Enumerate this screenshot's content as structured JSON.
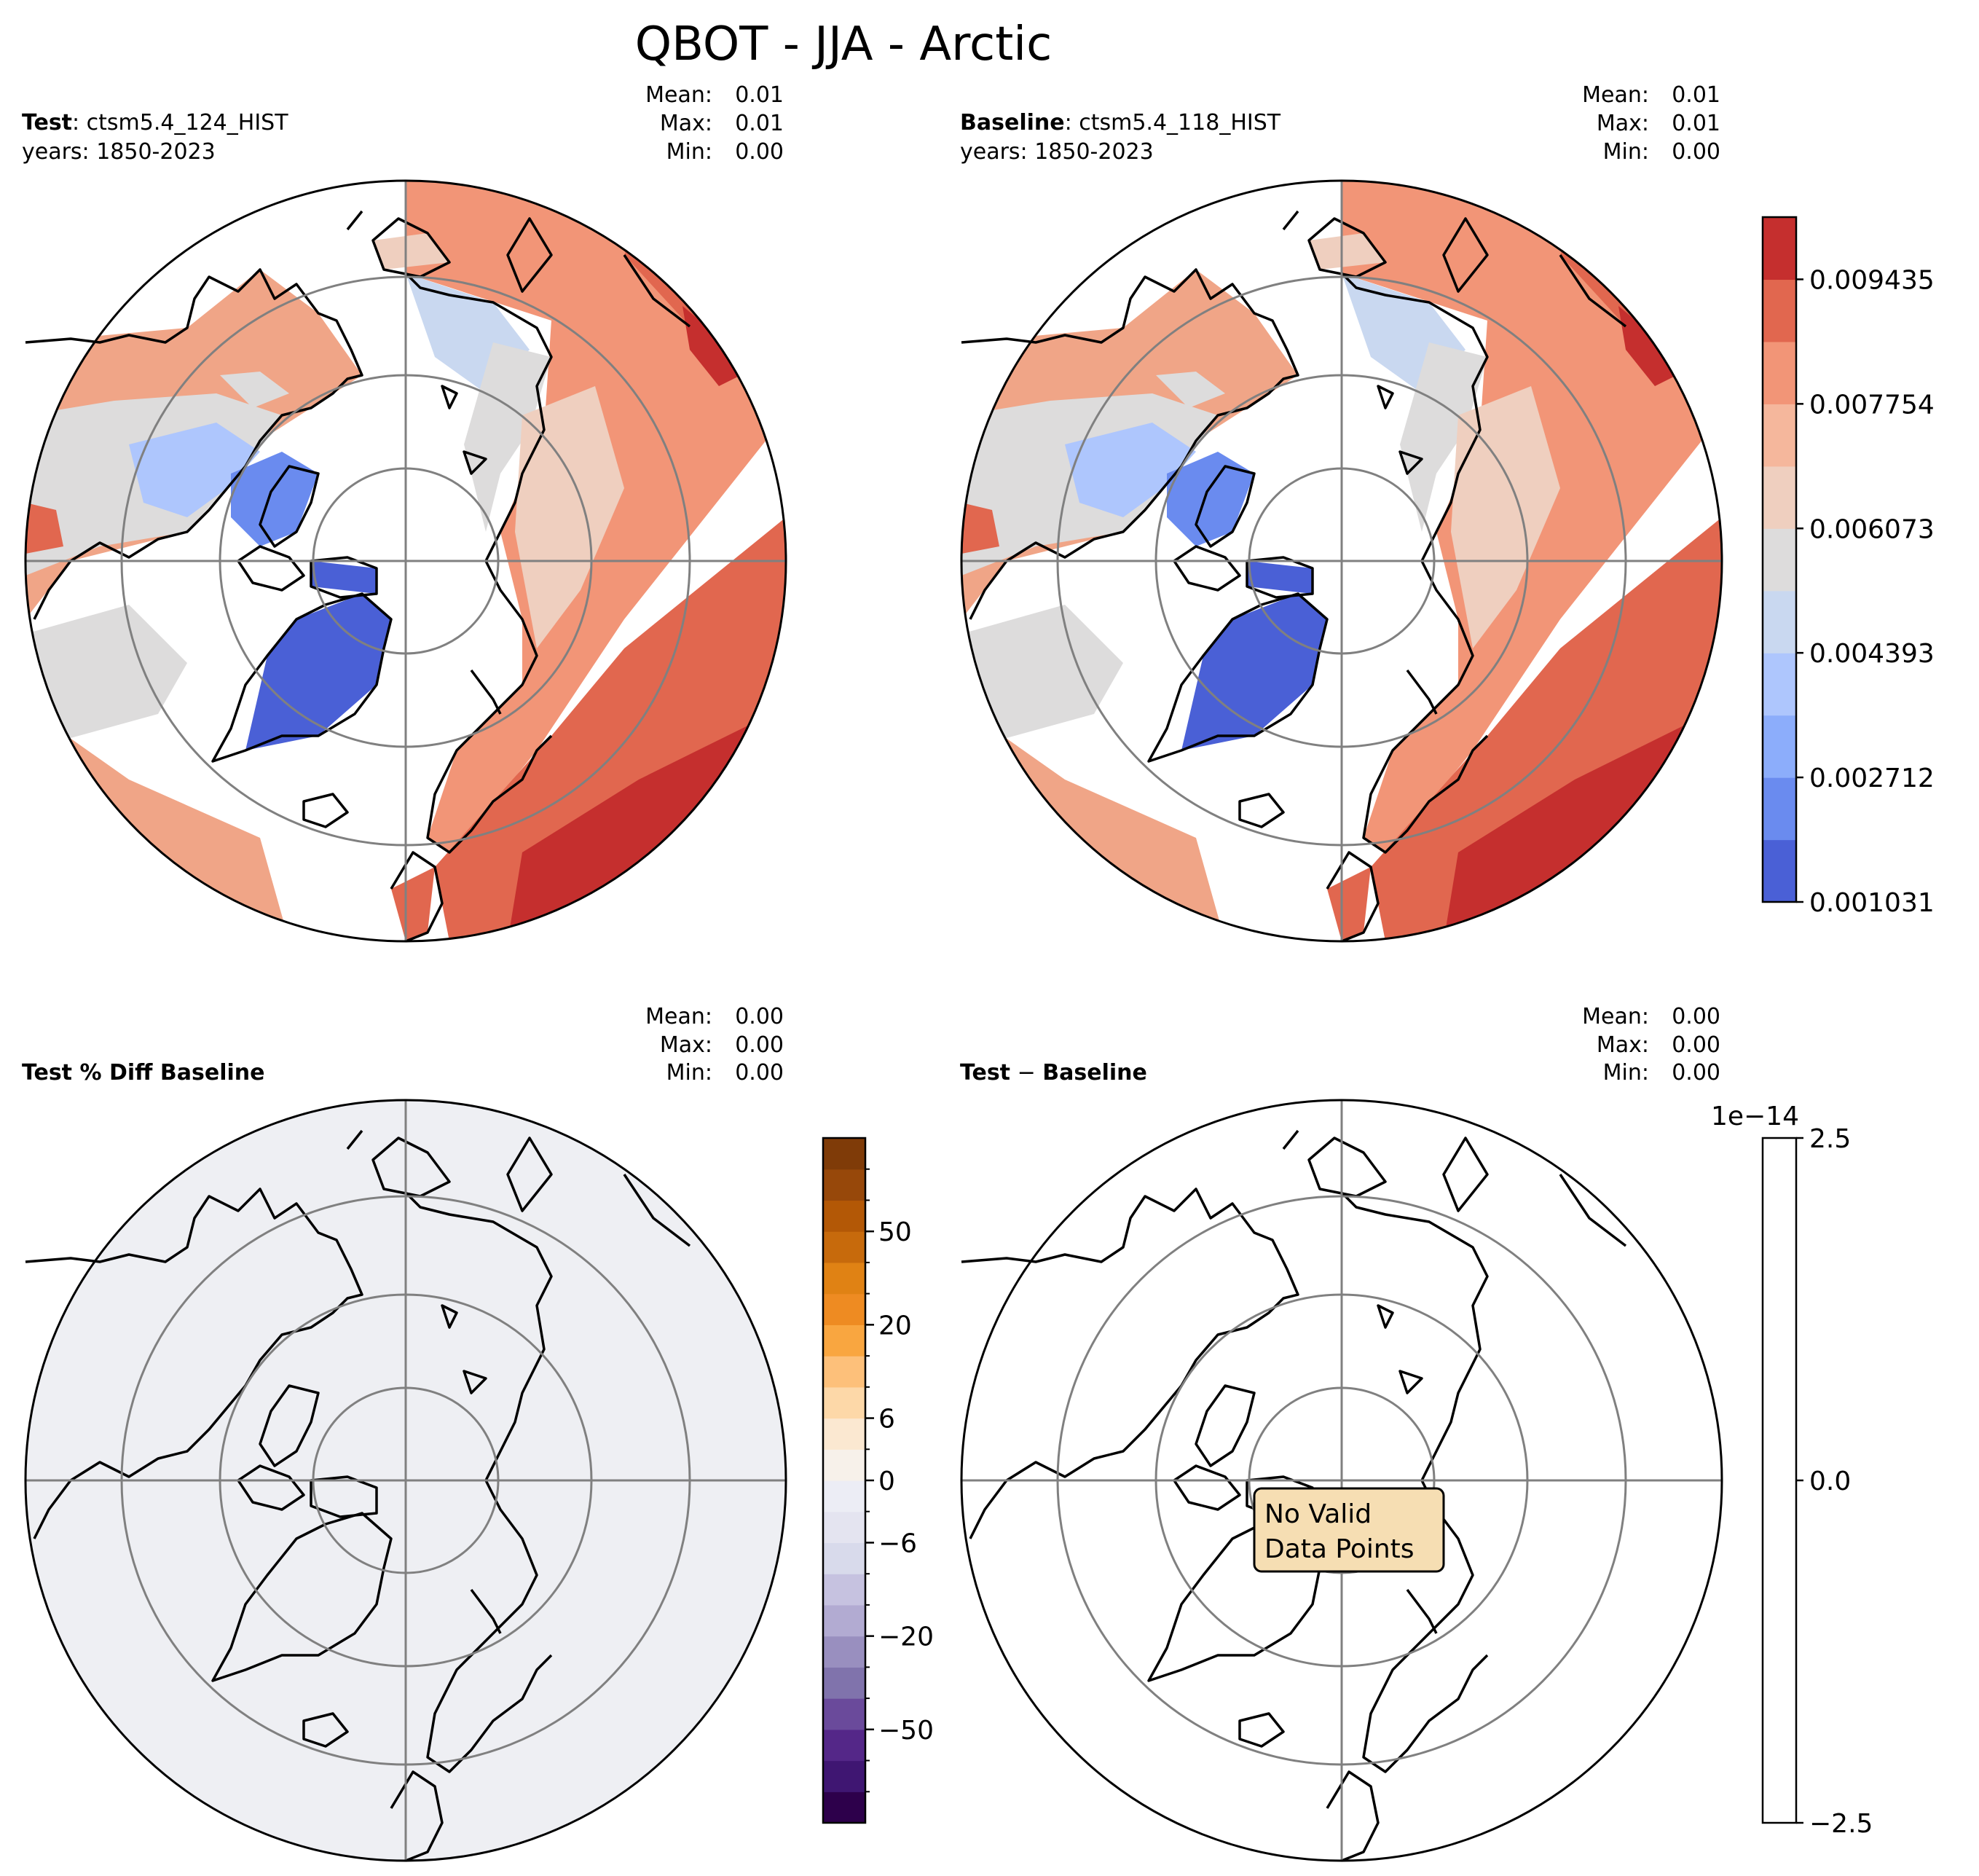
{
  "chart_data": {
    "type": "polar-contour-map",
    "title": "QBOT - JJA - Arctic",
    "panels": [
      {
        "id": "test",
        "label_bold": "Test",
        "label_rest": ": ctsm5.4_124_HIST",
        "years": "years: 1850-2023",
        "stats": {
          "mean": "0.01",
          "max": "0.01",
          "min": "0.00"
        },
        "colormap": "coolwarm",
        "field_range": [
          0.001031,
          0.0102
        ]
      },
      {
        "id": "baseline",
        "label_bold": "Baseline",
        "label_rest": ": ctsm5.4_118_HIST",
        "years": "years: 1850-2023",
        "stats": {
          "mean": "0.01",
          "max": "0.01",
          "min": "0.00"
        },
        "colormap": "coolwarm",
        "field_range": [
          0.001031,
          0.0102
        ]
      },
      {
        "id": "pctdiff",
        "label_bold": "Test % Diff Baseline",
        "stats": {
          "mean": "0.00",
          "max": "0.00",
          "min": "0.00"
        },
        "colormap": "PuOr_r",
        "fill": "near-zero everywhere"
      },
      {
        "id": "diff",
        "label_bold": "Test",
        "label_sep": " − ",
        "label_bold2": "Baseline",
        "stats": {
          "mean": "0.00",
          "max": "0.00",
          "min": "0.00"
        },
        "annotation": [
          "No Valid",
          "Data Points"
        ]
      }
    ],
    "stat_labels": {
      "mean": "Mean:",
      "max": "Max:",
      "min": "Min:"
    },
    "colorbars": {
      "main": {
        "range": [
          0.001031,
          0.010275
        ],
        "levels": 11,
        "tick_values": [
          "0.001031",
          "0.002712",
          "0.004393",
          "0.006073",
          "0.007754",
          "0.009435"
        ],
        "colors": [
          "#4a60d6",
          "#6a8bef",
          "#8cadfb",
          "#aec6fd",
          "#c9d8f0",
          "#dddcdc",
          "#efcfbf",
          "#f5b79c",
          "#f29577",
          "#e1674f",
          "#c52f2e"
        ]
      },
      "pctdiff": {
        "range": [
          -70,
          70
        ],
        "levels": 22,
        "tick_labels": [
          "−50",
          "−20",
          "−6",
          "0",
          "6",
          "20",
          "50"
        ],
        "colors": [
          "#2d004b",
          "#3f1672",
          "#542788",
          "#6a4a9b",
          "#8073ac",
          "#998fbf",
          "#b2abd2",
          "#c6c2e0",
          "#d8daeb",
          "#e4e4f0",
          "#ecedf5",
          "#f7f1ea",
          "#fbe8d1",
          "#fdd8a8",
          "#fdc07a",
          "#f9a640",
          "#ee8b22",
          "#e08214",
          "#c76a0c",
          "#b35806",
          "#97480a",
          "#7f3b08"
        ]
      },
      "diff": {
        "range": [
          -2.5,
          2.5
        ],
        "tick_labels": [
          "−2.5",
          "0.0",
          "2.5"
        ],
        "offset_label": "1e−14"
      }
    }
  }
}
